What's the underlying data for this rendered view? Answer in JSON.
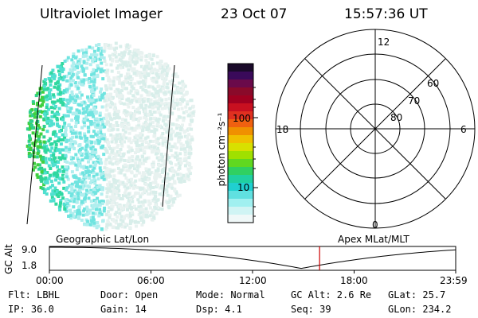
{
  "header": {
    "instrument": "Ultraviolet Imager",
    "date": "23 Oct 07",
    "time": "15:57:36 UT"
  },
  "colorbar": {
    "label": "photon cm⁻²s⁻¹",
    "ticks": [
      "100",
      "10"
    ],
    "colors": [
      "#1a0a2a",
      "#3a0a5a",
      "#6a0a4a",
      "#8a0a2a",
      "#a00020",
      "#c81020",
      "#e03020",
      "#f06010",
      "#f09000",
      "#f0c000",
      "#d8e000",
      "#a0e000",
      "#60d820",
      "#30d060",
      "#20d0a0",
      "#20d0d0",
      "#60e0e0",
      "#a0f0f0",
      "#d0f4f4",
      "#f0f8f8"
    ]
  },
  "polar_grid": {
    "mlt_labels": {
      "top": "12",
      "left": "18",
      "right": "6",
      "bottom": "0"
    },
    "lat_labels": [
      "60",
      "70",
      "80"
    ]
  },
  "timeline": {
    "ylabel": "GC Alt",
    "yticks": [
      "9.0",
      "1.8"
    ],
    "left_title": "Geographic Lat/Lon",
    "right_title": "Apex MLat/MLT",
    "xticks": [
      "00:00",
      "06:00",
      "12:00",
      "18:00",
      "23:59"
    ],
    "marker_fraction": 0.665
  },
  "status": {
    "flt": "Flt: LBHL",
    "ip": "IP: 36.0",
    "door": "Door: Open",
    "gain": "Gain: 14",
    "mode": "Mode: Normal",
    "dsp": "Dsp:    4.1",
    "gcalt": "GC Alt: 2.6 Re",
    "seq": "Seq: 39",
    "glat": "GLat:  25.7",
    "glon": "GLon: 234.2"
  }
}
